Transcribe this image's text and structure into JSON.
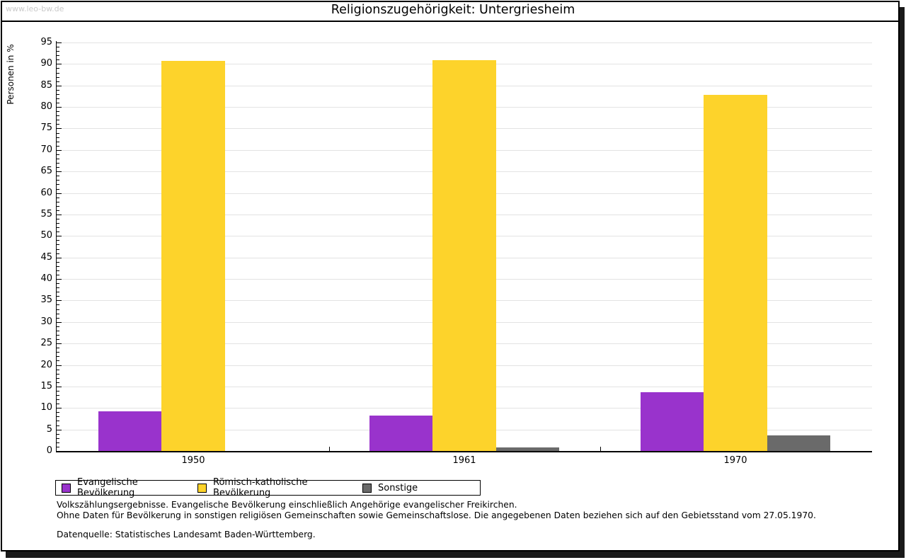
{
  "watermark": "www.leo-bw.de",
  "title": "Religionszugehörigkeit: Untergriesheim",
  "chart_data": {
    "type": "bar",
    "title": "Religionszugehörigkeit: Untergriesheim",
    "xlabel": "",
    "ylabel": "Personen in %",
    "ylim": [
      0,
      95
    ],
    "ytick_step": 5,
    "grid": true,
    "legend_position": "bottom",
    "categories": [
      "1950",
      "1961",
      "1970"
    ],
    "series": [
      {
        "name": "Evangelische Bevölkerung",
        "color": "#9933cc",
        "values": [
          9.2,
          8.3,
          13.6
        ]
      },
      {
        "name": "Römisch-katholische Bevölkerung",
        "color": "#fdd32b",
        "values": [
          90.8,
          90.9,
          82.8
        ]
      },
      {
        "name": "Sonstige",
        "color": "#6a6a6a",
        "values": [
          0.0,
          0.8,
          3.6
        ]
      }
    ]
  },
  "colors": {
    "gridline": "#e3e3e3",
    "axis": "#000000",
    "watermark": "#c9c9c9",
    "frame_shadow": "#1a1a1a"
  },
  "footnotes": {
    "line1": "Volkszählungsergebnisse. Evangelische Bevölkerung einschließlich Angehörige evangelischer Freikirchen.",
    "line2": "Ohne Daten für Bevölkerung in sonstigen religiösen Gemeinschaften sowie Gemeinschaftslose. Die angegebenen Daten beziehen sich auf den Gebietsstand vom 27.05.1970.",
    "source": "Datenquelle: Statistisches Landesamt Baden-Württemberg."
  }
}
